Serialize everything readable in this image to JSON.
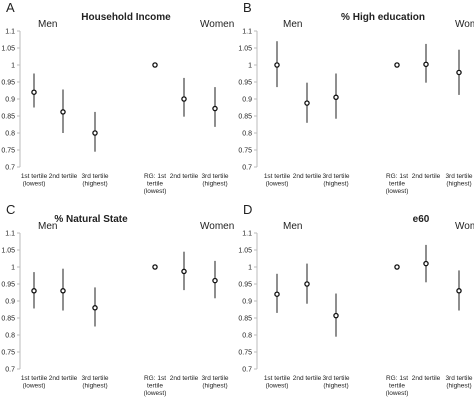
{
  "panels": [
    {
      "letter": "A",
      "title": "Household Income",
      "group_labels": [
        "Men",
        "Women"
      ],
      "chart_data": {
        "type": "scatter",
        "error_bars": true,
        "ylim": [
          0.7,
          1.1
        ],
        "yticks": [
          "0.7",
          "0.75",
          "0.8",
          "0.85",
          "0.9",
          "0.95",
          "1",
          "1.05",
          "1.1"
        ],
        "categories": [
          [
            "1st tertile",
            "(lowest)"
          ],
          [
            "2nd tertile"
          ],
          [
            "3rd tertile",
            "(highest)"
          ],
          [
            "RG: 1st",
            "tertile",
            "(lowest)"
          ],
          [
            "2nd tertile"
          ],
          [
            "3rd tertile",
            "(highest)"
          ]
        ],
        "values": [
          0.92,
          0.862,
          0.8,
          1.0,
          0.9,
          0.872
        ],
        "lower": [
          0.875,
          0.8,
          0.745,
          1.0,
          0.848,
          0.818
        ],
        "upper": [
          0.975,
          0.928,
          0.862,
          1.0,
          0.962,
          0.935
        ]
      }
    },
    {
      "letter": "B",
      "title": "% High education",
      "group_labels": [
        "Men",
        "Women"
      ],
      "chart_data": {
        "type": "scatter",
        "error_bars": true,
        "ylim": [
          0.7,
          1.1
        ],
        "yticks": [
          "0.7",
          "0.75",
          "0.8",
          "0.85",
          "0.9",
          "0.95",
          "1",
          "1.05",
          "1.1"
        ],
        "categories": [
          [
            "1st tertile",
            "(lowest)"
          ],
          [
            "2nd tertile"
          ],
          [
            "3rd tertile",
            "(highest)"
          ],
          [
            "RG: 1st",
            "tertile",
            "(lowest)"
          ],
          [
            "2nd tertile"
          ],
          [
            "3rd tertile",
            "(highest)"
          ]
        ],
        "values": [
          1.0,
          0.888,
          0.905,
          1.0,
          1.002,
          0.978
        ],
        "lower": [
          0.935,
          0.83,
          0.842,
          1.0,
          0.948,
          0.912
        ],
        "upper": [
          1.07,
          0.948,
          0.975,
          1.0,
          1.062,
          1.045
        ]
      }
    },
    {
      "letter": "C",
      "title": "% Natural State",
      "group_labels": [
        "Men",
        "Women"
      ],
      "chart_data": {
        "type": "scatter",
        "error_bars": true,
        "ylim": [
          0.7,
          1.1
        ],
        "yticks": [
          "0.7",
          "0.75",
          "0.8",
          "0.85",
          "0.9",
          "0.95",
          "1",
          "1.05",
          "1.1"
        ],
        "categories": [
          [
            "1st tertile",
            "(lowest)"
          ],
          [
            "2nd tertile"
          ],
          [
            "3rd tertile",
            "(highest)"
          ],
          [
            "RG: 1st",
            "tertile",
            "(lowest)"
          ],
          [
            "2nd tertile"
          ],
          [
            "3rd tertile",
            "(highest)"
          ]
        ],
        "values": [
          0.93,
          0.93,
          0.88,
          1.0,
          0.987,
          0.96
        ],
        "lower": [
          0.878,
          0.872,
          0.825,
          1.0,
          0.932,
          0.908
        ],
        "upper": [
          0.985,
          0.995,
          0.94,
          1.0,
          1.045,
          1.018
        ]
      }
    },
    {
      "letter": "D",
      "title": "e60",
      "group_labels": [
        "Men",
        "Women"
      ],
      "chart_data": {
        "type": "scatter",
        "error_bars": true,
        "ylim": [
          0.7,
          1.1
        ],
        "yticks": [
          "0.7",
          "0.75",
          "0.8",
          "0.85",
          "0.9",
          "0.95",
          "1",
          "1.05",
          "1.1"
        ],
        "categories": [
          [
            "1st tertile",
            "(lowest)"
          ],
          [
            "2nd tertile"
          ],
          [
            "3rd tertile",
            "(highest)"
          ],
          [
            "RG: 1st",
            "tertile",
            "(lowest)"
          ],
          [
            "2nd tertile"
          ],
          [
            "3rd tertile",
            "(highest)"
          ]
        ],
        "values": [
          0.92,
          0.95,
          0.857,
          1.0,
          1.01,
          0.93
        ],
        "lower": [
          0.865,
          0.892,
          0.795,
          1.0,
          0.955,
          0.872
        ],
        "upper": [
          0.98,
          1.01,
          0.922,
          1.0,
          1.065,
          0.99
        ]
      }
    }
  ]
}
